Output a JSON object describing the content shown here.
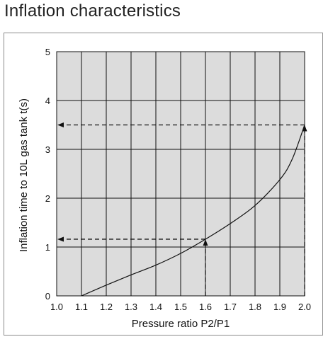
{
  "page": {
    "title": "Inflation characteristics"
  },
  "chart_data": {
    "type": "line",
    "xlabel": "Pressure ratio P2/P1",
    "ylabel": "Inflation time to 10L gas tank t(s)",
    "xlim": [
      1.0,
      2.0
    ],
    "ylim": [
      0,
      5
    ],
    "x_ticks": [
      "1.0",
      "1.1",
      "1.2",
      "1.3",
      "1.4",
      "1.5",
      "1.6",
      "1.7",
      "1.8",
      "1.9",
      "2.0"
    ],
    "y_ticks": [
      "0",
      "1",
      "2",
      "3",
      "4",
      "5"
    ],
    "grid": true,
    "series": [
      {
        "points": [
          [
            1.1,
            0.0
          ],
          [
            1.2,
            0.22
          ],
          [
            1.3,
            0.43
          ],
          [
            1.4,
            0.63
          ],
          [
            1.5,
            0.87
          ],
          [
            1.6,
            1.16
          ],
          [
            1.7,
            1.48
          ],
          [
            1.8,
            1.85
          ],
          [
            1.9,
            2.38
          ],
          [
            1.95,
            2.8
          ],
          [
            2.0,
            3.5
          ]
        ]
      }
    ],
    "annotations": [
      {
        "type": "dashed-arrow",
        "x": 1.6,
        "y": 1.16
      },
      {
        "type": "dashed-arrow",
        "x": 2.0,
        "y": 3.5
      }
    ],
    "colors": {
      "plot_background": "#dcdcdc",
      "grid": "#111111",
      "curve": "#111111",
      "frame": "#8c8c8c"
    }
  }
}
